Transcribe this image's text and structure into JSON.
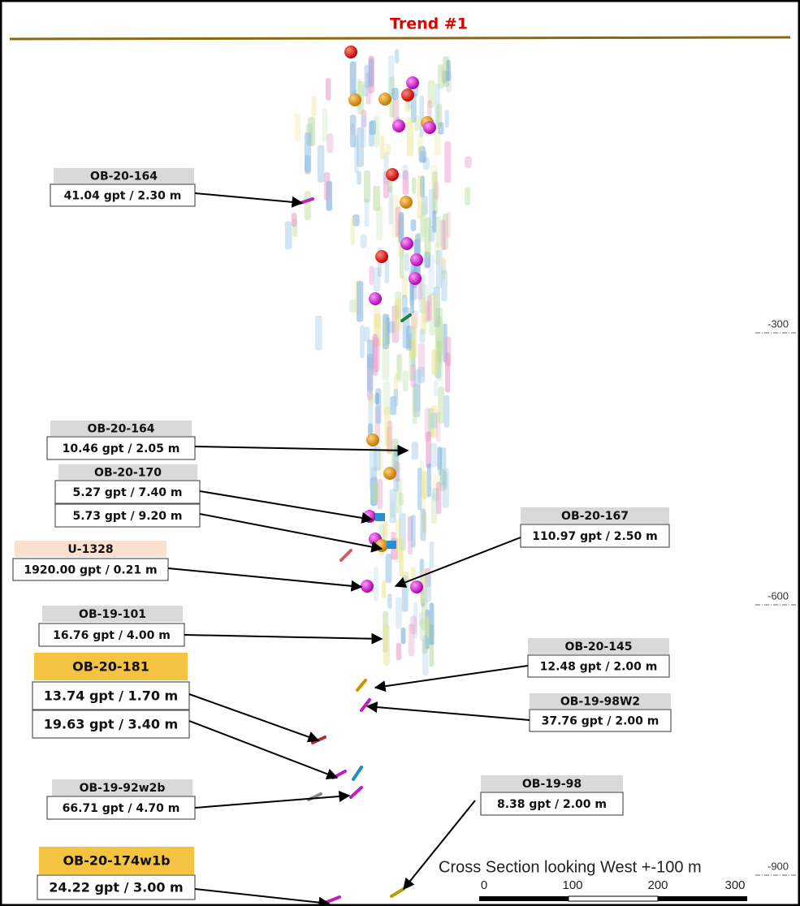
{
  "title": "Trend #1",
  "callouts": [
    {
      "hole": "OB-20-164",
      "intercepts": [
        "41.04 gpt / 2.30 m"
      ]
    },
    {
      "hole": "OB-20-164",
      "intercepts": [
        "10.46 gpt / 2.05 m"
      ]
    },
    {
      "hole": "OB-20-170",
      "intercepts": [
        "5.27 gpt / 7.40 m",
        "5.73 gpt / 9.20 m"
      ]
    },
    {
      "hole": "OB-20-167",
      "intercepts": [
        "110.97 gpt / 2.50 m"
      ]
    },
    {
      "hole": "U-1328",
      "intercepts": [
        "1920.00 gpt / 0.21 m"
      ]
    },
    {
      "hole": "OB-19-101",
      "intercepts": [
        "16.76 gpt / 4.00 m"
      ]
    },
    {
      "hole": "OB-20-145",
      "intercepts": [
        "12.48 gpt / 2.00 m"
      ]
    },
    {
      "hole": "OB-20-181",
      "intercepts": [
        "13.74 gpt / 1.70 m",
        "19.63 gpt / 3.40 m"
      ]
    },
    {
      "hole": "OB-19-98W2",
      "intercepts": [
        "37.76 gpt / 2.00 m"
      ]
    },
    {
      "hole": "OB-19-92w2b",
      "intercepts": [
        "66.71 gpt / 4.70 m"
      ]
    },
    {
      "hole": "OB-19-98",
      "intercepts": [
        "8.38 gpt / 2.00 m"
      ]
    },
    {
      "hole": "OB-20-174w1b",
      "intercepts": [
        "24.22 gpt / 3.00 m"
      ]
    }
  ],
  "depth_labels": [
    "-300",
    "-600",
    "-900"
  ],
  "section_label": "Cross Section looking West +-100 m",
  "scale_labels": [
    "0",
    "100",
    "200",
    "300"
  ]
}
